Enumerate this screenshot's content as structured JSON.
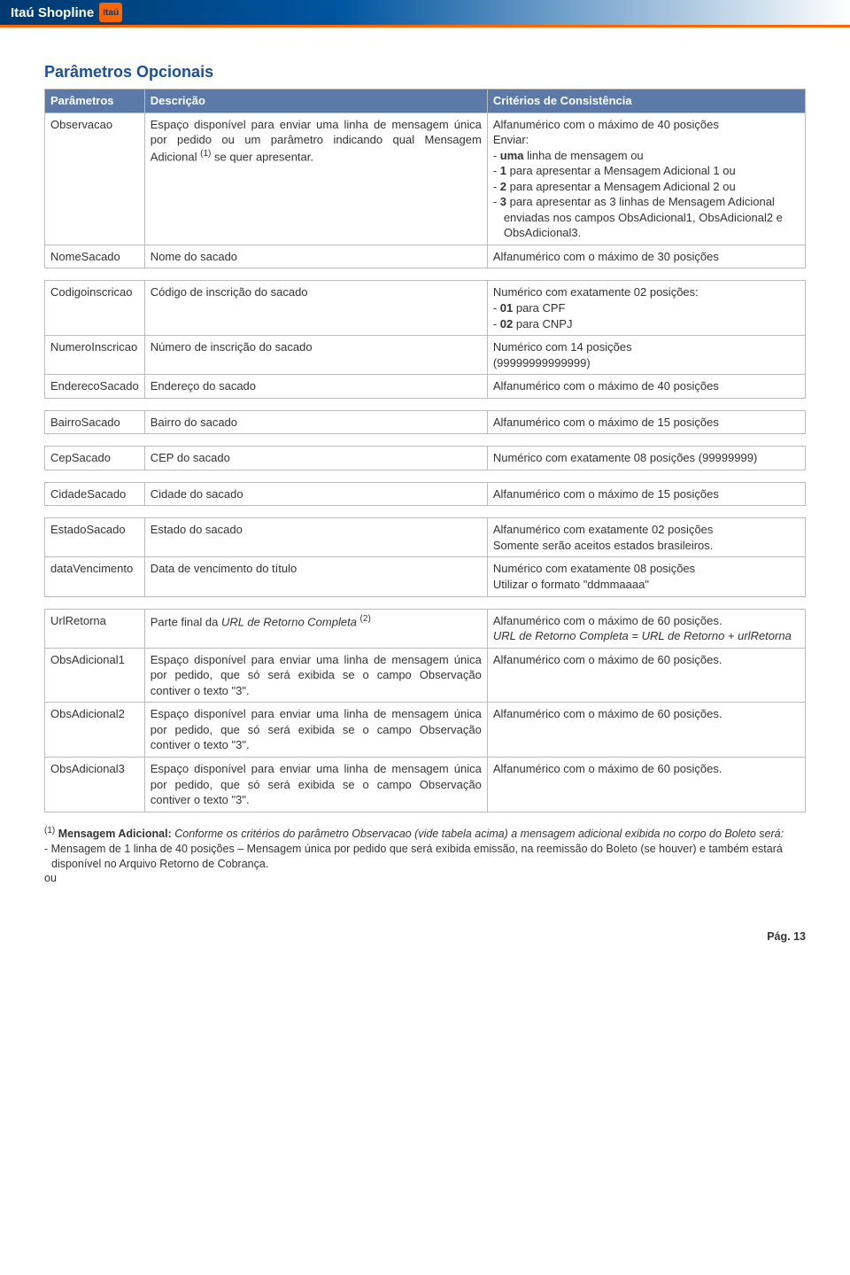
{
  "header": {
    "brand": "Itaú Shopline",
    "logo": "Itaú"
  },
  "section_title": "Parâmetros Opcionais",
  "table": {
    "headers": [
      "Parâmetros",
      "Descrição",
      "Critérios de Consistência"
    ],
    "rows": [
      {
        "param": "Observacao",
        "desc": "Espaço disponível para enviar uma linha de mensagem única por pedido ou um parâmetro indicando qual Mensagem Adicional (1) se quer apresentar.",
        "crit_pre": "Alfanumérico com o máximo de 40 posições\nEnviar:",
        "crit_items": [
          "uma linha de mensagem ou",
          "1 para apresentar a Mensagem Adicional 1 ou",
          "2 para apresentar a Mensagem Adicional 2 ou",
          "3 para apresentar as 3 linhas de Mensagem Adicional enviadas nos campos ObsAdicional1, ObsAdicional2 e ObsAdicional3."
        ]
      },
      {
        "param": "NomeSacado",
        "desc": "Nome do sacado",
        "crit": "Alfanumérico com o máximo de 30 posições"
      },
      {
        "param": "Codigoinscricao",
        "desc": "Código de inscrição do sacado",
        "crit_pre": "Numérico com exatamente 02 posições:",
        "crit_items": [
          "01 para CPF",
          "02 para CNPJ"
        ]
      },
      {
        "param": "NumeroInscricao",
        "desc": "Número de inscrição do sacado",
        "crit": "Numérico com 14 posições\n(99999999999999)"
      },
      {
        "param": "EnderecoSacado",
        "desc": "Endereço do sacado",
        "crit": "Alfanumérico com o máximo de 40 posições"
      },
      {
        "param": "BairroSacado",
        "desc": "Bairro do sacado",
        "crit": "Alfanumérico com o máximo de 15 posições"
      },
      {
        "param": "CepSacado",
        "desc": "CEP do sacado",
        "crit": "Numérico com exatamente 08 posições (99999999)"
      },
      {
        "param": "CidadeSacado",
        "desc": "Cidade do sacado",
        "crit": "Alfanumérico com o máximo de 15 posições"
      },
      {
        "param": "EstadoSacado",
        "desc": "Estado do sacado",
        "crit": "Alfanumérico com exatamente 02 posições\nSomente serão aceitos estados brasileiros."
      },
      {
        "param": "dataVencimento",
        "desc": "Data de vencimento do título",
        "crit": "Numérico com exatamente 08 posições\nUtilizar o formato \"ddmmaaaa\""
      },
      {
        "param": "UrlRetorna",
        "desc_html": "Parte final da <span class='italic'>URL de Retorno Completa</span> <span class='sup'>(2)</span>",
        "crit_html": "Alfanumérico com o máximo de 60 posições.<br><span class='italic'>URL de Retorno Completa = URL de Retorno + urlRetorna</span>"
      },
      {
        "param": "ObsAdicional1",
        "desc": "Espaço disponível para enviar uma linha de mensagem única por pedido, que só será exibida se o campo Observação contiver o texto \"3\".",
        "crit": "Alfanumérico com o máximo de 60 posições."
      },
      {
        "param": "ObsAdicional2",
        "desc": "Espaço disponível para enviar uma linha de mensagem única por pedido, que só será exibida se o campo Observação contiver o texto \"3\".",
        "crit": "Alfanumérico com o máximo de 60 posições."
      },
      {
        "param": "ObsAdicional3",
        "desc": "Espaço disponível para enviar uma linha de mensagem única por pedido, que só será exibida se o campo Observação contiver o texto \"3\".",
        "crit": "Alfanumérico com o máximo de 60 posições."
      }
    ],
    "gaps_after": [
      1,
      4,
      5,
      6,
      7,
      9
    ]
  },
  "footnote": {
    "sup": "(1)",
    "lead": " Mensagem Adicional: ",
    "body": "Conforme os critérios do parâmetro Observacao (vide tabela acima) a mensagem adicional exibida no corpo do Boleto será:",
    "line2": "- Mensagem de 1 linha de 40 posições – Mensagem única por pedido que será exibida emissão,  na reemissão do Boleto (se houver) e também estará disponível no Arquivo Retorno de Cobrança.",
    "line3": "ou"
  },
  "footer": {
    "page": "Pág. 13"
  }
}
